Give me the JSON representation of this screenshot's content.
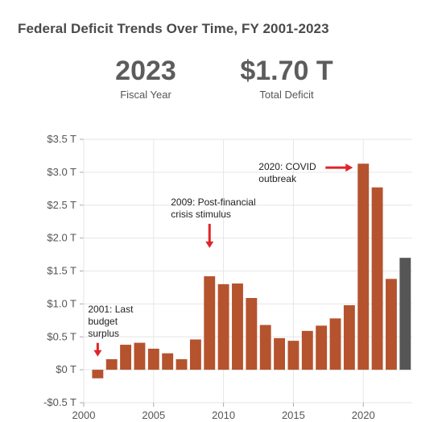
{
  "title": "Federal Deficit Trends Over Time, FY 2001-2023",
  "kpis": {
    "year": {
      "value": "2023",
      "label": "Fiscal Year"
    },
    "deficit": {
      "value": "$1.70 T",
      "label": "Total Deficit"
    }
  },
  "chart_data": {
    "type": "bar",
    "x": [
      2001,
      2002,
      2003,
      2004,
      2005,
      2006,
      2007,
      2008,
      2009,
      2010,
      2011,
      2012,
      2013,
      2014,
      2015,
      2016,
      2017,
      2018,
      2019,
      2020,
      2021,
      2022,
      2023
    ],
    "values": [
      -0.13,
      0.16,
      0.38,
      0.41,
      0.32,
      0.25,
      0.16,
      0.46,
      1.42,
      1.3,
      1.31,
      1.09,
      0.68,
      0.48,
      0.44,
      0.59,
      0.67,
      0.78,
      0.98,
      3.13,
      2.77,
      1.38,
      1.7
    ],
    "highlight_year": 2023,
    "colors": {
      "bar": "#b5532e",
      "highlight": "#565656",
      "arrow": "#e0242b",
      "grid": "#e6e6e6"
    },
    "ylim": [
      -0.5,
      3.5
    ],
    "xlim": [
      2000,
      2023.5
    ],
    "y_ticks": [
      -0.5,
      0,
      0.5,
      1.0,
      1.5,
      2.0,
      2.5,
      3.0,
      3.5
    ],
    "y_tick_labels": [
      "-$0.5 T",
      "$0 T",
      "$0.5 T",
      "$1.0 T",
      "$1.5 T",
      "$2.0 T",
      "$2.5 T",
      "$3.0 T",
      "$3.5 T"
    ],
    "x_ticks": [
      2000,
      2005,
      2010,
      2015,
      2020
    ],
    "x_tick_labels": [
      "2000",
      "2005",
      "2010",
      "2015",
      "2020"
    ],
    "grid": true,
    "annotations": [
      {
        "lines": [
          "2001: Last",
          "budget",
          "surplus"
        ],
        "year": 2001,
        "value": 0.2,
        "arrow": "down"
      },
      {
        "lines": [
          "2009: Post-financial",
          "crisis stimulus"
        ],
        "year": 2009,
        "value": 1.85,
        "arrow": "down"
      },
      {
        "lines": [
          "2020: COVID",
          "outbreak"
        ],
        "year": 2020,
        "value": 3.07,
        "arrow": "right"
      }
    ]
  }
}
